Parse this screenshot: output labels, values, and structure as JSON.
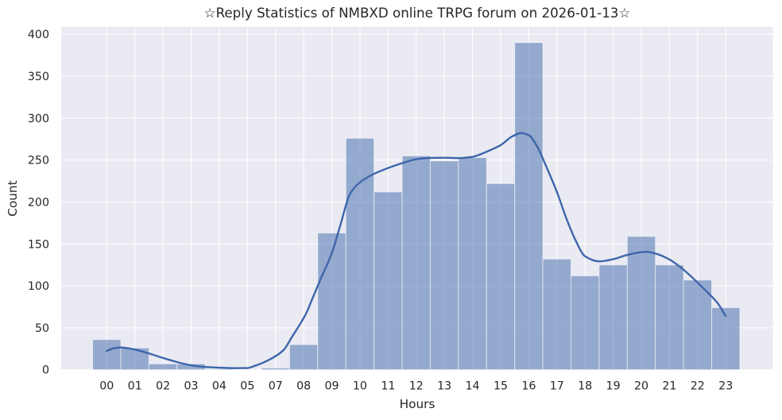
{
  "chart_data": {
    "type": "bar",
    "subtype": "histogram-with-kde",
    "title": "☆Reply Statistics of NMBXD online TRPG forum on 2026-01-13☆",
    "xlabel": "Hours",
    "ylabel": "Count",
    "categories": [
      "00",
      "01",
      "02",
      "03",
      "04",
      "05",
      "07",
      "08",
      "09",
      "10",
      "11",
      "12",
      "13",
      "14",
      "15",
      "16",
      "17",
      "18",
      "19",
      "20",
      "21",
      "22",
      "23"
    ],
    "values": [
      36,
      26,
      7,
      7,
      1,
      0,
      2,
      30,
      163,
      276,
      212,
      255,
      249,
      253,
      222,
      390,
      132,
      112,
      125,
      159,
      125,
      107,
      74
    ],
    "yticks": [
      0,
      50,
      100,
      150,
      200,
      250,
      300,
      350,
      400
    ],
    "ylim": [
      0,
      409
    ],
    "grid": true,
    "legend": false,
    "kde_points": [
      [
        0,
        22.5
      ],
      [
        0.25,
        25.5
      ],
      [
        0.5,
        26.5
      ],
      [
        0.75,
        25.7
      ],
      [
        1,
        24
      ],
      [
        1.5,
        19.5
      ],
      [
        2,
        14
      ],
      [
        2.5,
        9.2
      ],
      [
        3,
        5.3
      ],
      [
        3.5,
        3.3
      ],
      [
        4,
        2.5
      ],
      [
        4.6,
        1.9
      ],
      [
        5,
        2.0
      ],
      [
        5.25,
        4.5
      ],
      [
        5.55,
        8.3
      ],
      [
        5.85,
        13.3
      ],
      [
        6.15,
        19.6
      ],
      [
        6.3,
        24
      ],
      [
        6.6,
        40
      ],
      [
        6.9,
        56
      ],
      [
        7.1,
        68
      ],
      [
        7.3,
        84
      ],
      [
        7.6,
        108
      ],
      [
        8,
        139
      ],
      [
        8.3,
        172
      ],
      [
        8.65,
        210
      ],
      [
        9,
        223.5
      ],
      [
        9.35,
        231
      ],
      [
        9.5,
        233.6
      ],
      [
        10,
        240.5
      ],
      [
        10.5,
        246.3
      ],
      [
        11,
        251
      ],
      [
        11.5,
        252.6
      ],
      [
        12,
        252.8
      ],
      [
        12.5,
        252.4
      ],
      [
        13,
        253.9
      ],
      [
        13.35,
        257.8
      ],
      [
        13.6,
        261.4
      ],
      [
        14,
        267.8
      ],
      [
        14.4,
        278
      ],
      [
        14.73,
        282.3
      ],
      [
        15,
        279.7
      ],
      [
        15.3,
        266
      ],
      [
        15.6,
        244
      ],
      [
        16,
        212
      ],
      [
        16.33,
        181
      ],
      [
        16.64,
        156
      ],
      [
        17,
        135.3
      ],
      [
        17.5,
        129.2
      ],
      [
        18,
        131.8
      ],
      [
        18.5,
        136.9
      ],
      [
        19,
        140.2
      ],
      [
        19.2,
        140.6
      ],
      [
        19.5,
        138.6
      ],
      [
        20,
        131.5
      ],
      [
        20.3,
        124.6
      ],
      [
        20.66,
        114.6
      ],
      [
        21,
        103.8
      ],
      [
        21.4,
        90.7
      ],
      [
        21.7,
        80
      ],
      [
        22,
        64
      ]
    ]
  },
  "colors": {
    "figure_background": "#ffffff",
    "axes_background": "#eaeaf2",
    "grid": "#ffffff",
    "bar_fill": "#4c72b0",
    "bar_alpha": 0.55,
    "bar_edge": "#ffffff",
    "kde_line": "#3e66aa",
    "text": "#262626"
  }
}
